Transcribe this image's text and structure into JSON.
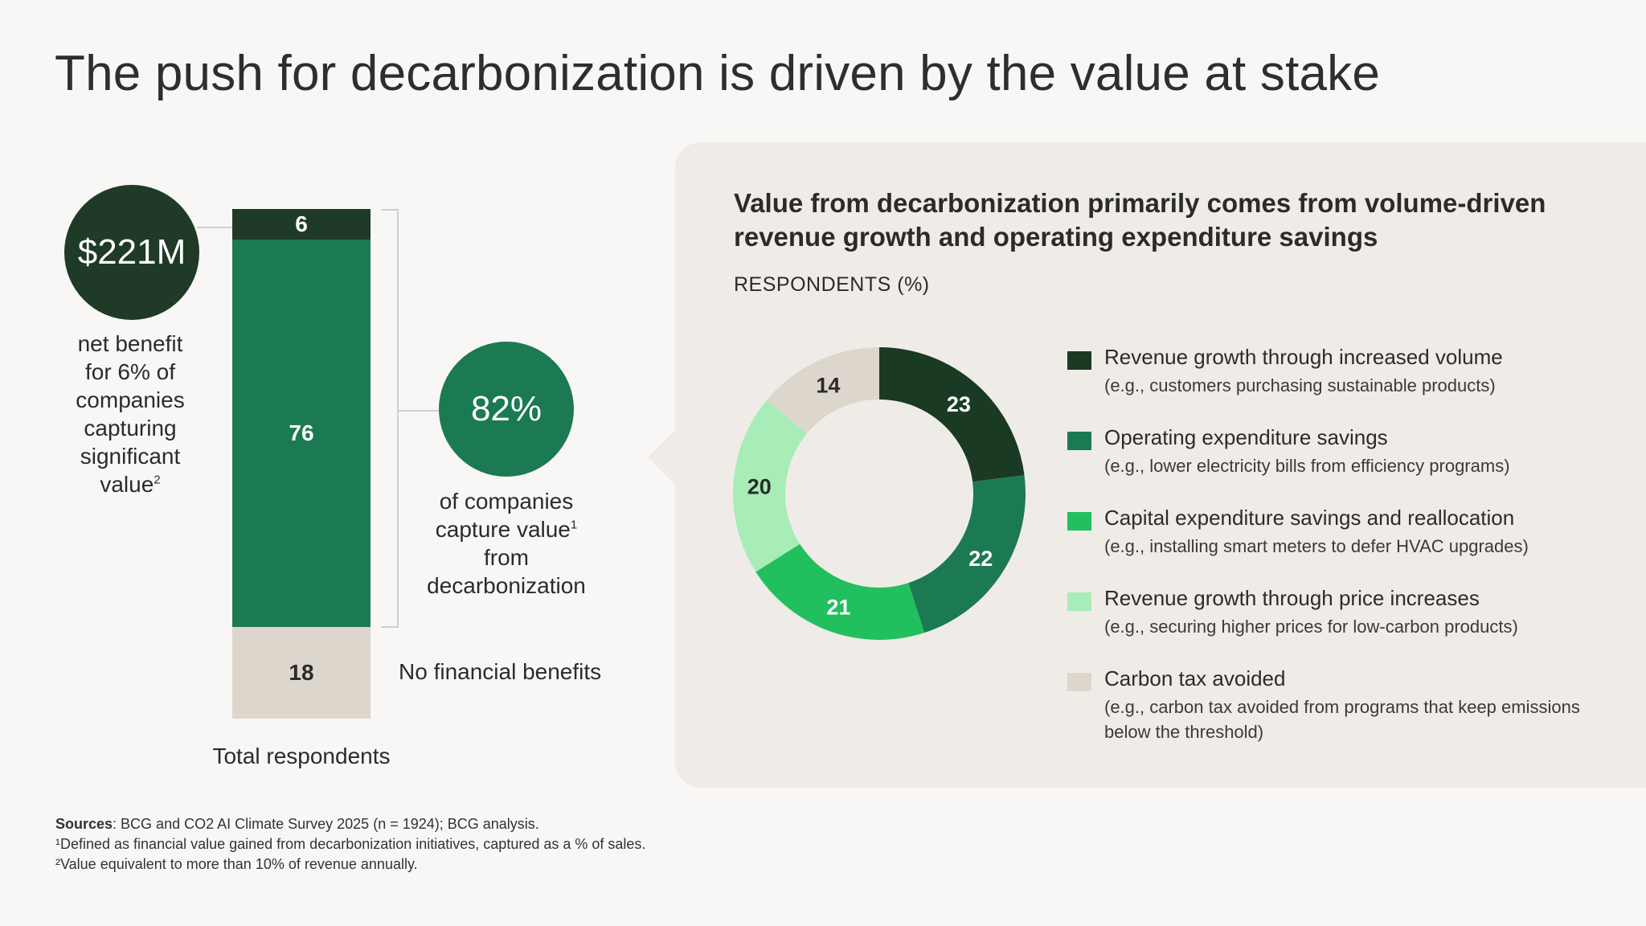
{
  "title": "The push for decarbonization is driven by the value at stake",
  "left": {
    "circle_top": {
      "value": "$221M",
      "color": "#1f3a26"
    },
    "caption_top": [
      "net benefit",
      "for 6% of",
      "companies",
      "capturing",
      "significant"
    ],
    "caption_top_last": "value",
    "caption_top_sup": "2",
    "circle_mid": {
      "value": "82%",
      "color": "#1b7a52"
    },
    "caption_mid_1": "of companies",
    "caption_mid_2": "capture value",
    "caption_mid_sup": "1",
    "caption_mid_3": "from",
    "caption_mid_4": "decarbonization",
    "no_financial": "No financial benefits",
    "total_label": "Total respondents"
  },
  "panel": {
    "title": "Value from decarbonization primarily comes from volume-driven revenue growth and operating expenditure savings",
    "subtitle": "RESPONDENTS (%)"
  },
  "legend": [
    {
      "label": "Revenue growth through increased volume",
      "note": "(e.g., customers purchasing sustainable products)",
      "color": "#1b3a24"
    },
    {
      "label": "Operating expenditure savings",
      "note": "(e.g., lower electricity bills from efficiency programs)",
      "color": "#1b7a52"
    },
    {
      "label": "Capital expenditure savings and reallocation",
      "note": "(e.g., installing smart meters to defer HVAC upgrades)",
      "color": "#22bf5f"
    },
    {
      "label": "Revenue growth through price increases",
      "note": "(e.g., securing higher prices for low-carbon products)",
      "color": "#a8ecb8"
    },
    {
      "label": "Carbon tax avoided",
      "note": "(e.g., carbon tax avoided from programs that keep emissions below the threshold)",
      "color": "#ddd6cd"
    }
  ],
  "footnotes": {
    "sources_label": "Sources",
    "sources_text": ": BCG and CO2 AI Climate Survey 2025 (n = 1924); BCG analysis.",
    "note1": "¹Defined as financial value gained from decarbonization initiatives, captured as a % of sales.",
    "note2": "²Value equivalent to more than 10% of revenue annually."
  },
  "chart_data": [
    {
      "type": "bar",
      "stacked": true,
      "categories": [
        "Total respondents"
      ],
      "series": [
        {
          "values": [
            18
          ],
          "color": "#ddd6cd"
        },
        {
          "values": [
            76
          ],
          "color": "#1b7a52"
        },
        {
          "values": [
            6
          ],
          "color": "#1f3a26"
        }
      ],
      "data_labels": [
        "18",
        "76",
        "6"
      ],
      "xlabel": "Total respondents"
    },
    {
      "type": "pie",
      "donut": true,
      "title": "Value from decarbonization primarily comes from volume-driven revenue growth and operating expenditure savings",
      "subtitle": "RESPONDENTS (%)",
      "categories": [
        "Revenue growth through increased volume",
        "Operating expenditure savings",
        "Capital expenditure savings and reallocation",
        "Revenue growth through price increases",
        "Carbon tax avoided"
      ],
      "values": [
        23,
        22,
        21,
        20,
        14
      ],
      "colors": [
        "#1b3a24",
        "#1b7a52",
        "#22bf5f",
        "#a8ecb8",
        "#ddd6cd"
      ],
      "label_colors": [
        "#ffffff",
        "#ffffff",
        "#ffffff",
        "#2b2b2b",
        "#2b2b2b"
      ],
      "legend": "right"
    }
  ]
}
